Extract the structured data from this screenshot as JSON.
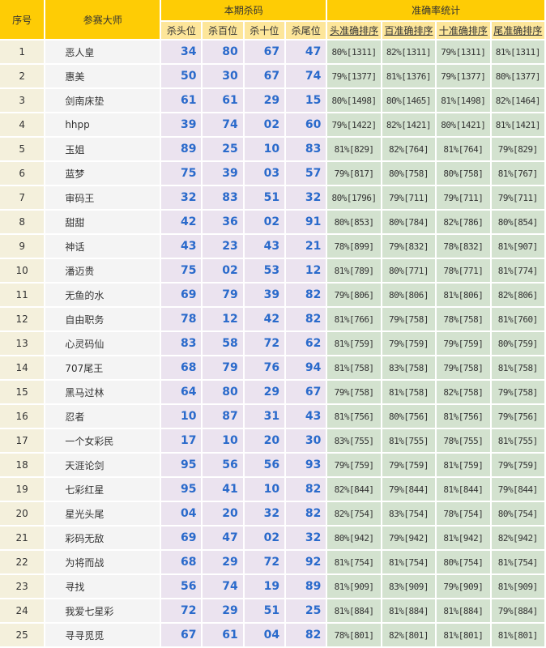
{
  "header": {
    "no": "序号",
    "name": "参赛大师",
    "kill_group": "本期杀码",
    "stat_group": "准确率统计",
    "kill_cols": [
      "杀头位",
      "杀百位",
      "杀十位",
      "杀尾位"
    ],
    "stat_cols": [
      "头准确排序",
      "百准确排序",
      "十准确排序",
      "尾准确排序"
    ]
  },
  "colors": {
    "header": "#fecc05",
    "subheader": "#fde69a",
    "kill_text": "#2a6acb",
    "kill_bg": "#ebe3ef",
    "stat_bg": "#d3e2cf"
  },
  "rows": [
    {
      "no": "1",
      "name": "恶人皇",
      "kill": [
        "34",
        "80",
        "67",
        "47"
      ],
      "stat": [
        "80%[1311]",
        "82%[1311]",
        "79%[1311]",
        "81%[1311]"
      ]
    },
    {
      "no": "2",
      "name": "惠美",
      "kill": [
        "50",
        "30",
        "67",
        "74"
      ],
      "stat": [
        "79%[1377]",
        "81%[1376]",
        "79%[1377]",
        "80%[1377]"
      ]
    },
    {
      "no": "3",
      "name": "剑南床垫",
      "kill": [
        "61",
        "61",
        "29",
        "15"
      ],
      "stat": [
        "80%[1498]",
        "80%[1465]",
        "81%[1498]",
        "82%[1464]"
      ]
    },
    {
      "no": "4",
      "name": "hhpp",
      "kill": [
        "39",
        "74",
        "02",
        "60"
      ],
      "stat": [
        "79%[1422]",
        "82%[1421]",
        "80%[1421]",
        "81%[1421]"
      ]
    },
    {
      "no": "5",
      "name": "玉姐",
      "kill": [
        "89",
        "25",
        "10",
        "83"
      ],
      "stat": [
        "81%[829]",
        "82%[764]",
        "81%[764]",
        "79%[829]"
      ]
    },
    {
      "no": "6",
      "name": "蓝梦",
      "kill": [
        "75",
        "39",
        "03",
        "57"
      ],
      "stat": [
        "79%[817]",
        "80%[758]",
        "80%[758]",
        "81%[767]"
      ]
    },
    {
      "no": "7",
      "name": "审码王",
      "kill": [
        "32",
        "83",
        "51",
        "32"
      ],
      "stat": [
        "80%[1796]",
        "79%[711]",
        "79%[711]",
        "79%[711]"
      ]
    },
    {
      "no": "8",
      "name": "甜甜",
      "kill": [
        "42",
        "36",
        "02",
        "91"
      ],
      "stat": [
        "80%[853]",
        "80%[784]",
        "82%[786]",
        "80%[854]"
      ]
    },
    {
      "no": "9",
      "name": "神话",
      "kill": [
        "43",
        "23",
        "43",
        "21"
      ],
      "stat": [
        "78%[899]",
        "79%[832]",
        "78%[832]",
        "81%[907]"
      ]
    },
    {
      "no": "10",
      "name": "潘迈贵",
      "kill": [
        "75",
        "02",
        "53",
        "12"
      ],
      "stat": [
        "81%[789]",
        "80%[771]",
        "78%[771]",
        "81%[774]"
      ]
    },
    {
      "no": "11",
      "name": "无鱼的水",
      "kill": [
        "69",
        "79",
        "39",
        "82"
      ],
      "stat": [
        "79%[806]",
        "80%[806]",
        "81%[806]",
        "82%[806]"
      ]
    },
    {
      "no": "12",
      "name": "自由职务",
      "kill": [
        "78",
        "12",
        "42",
        "82"
      ],
      "stat": [
        "81%[766]",
        "79%[758]",
        "78%[758]",
        "81%[760]"
      ]
    },
    {
      "no": "13",
      "name": "心灵码仙",
      "kill": [
        "83",
        "58",
        "72",
        "62"
      ],
      "stat": [
        "81%[759]",
        "79%[759]",
        "79%[759]",
        "80%[759]"
      ]
    },
    {
      "no": "14",
      "name": "707尾王",
      "kill": [
        "68",
        "79",
        "76",
        "94"
      ],
      "stat": [
        "81%[758]",
        "83%[758]",
        "79%[758]",
        "81%[758]"
      ]
    },
    {
      "no": "15",
      "name": "黑马过林",
      "kill": [
        "64",
        "80",
        "29",
        "67"
      ],
      "stat": [
        "79%[758]",
        "81%[758]",
        "82%[758]",
        "79%[758]"
      ]
    },
    {
      "no": "16",
      "name": "忍者",
      "kill": [
        "10",
        "87",
        "31",
        "43"
      ],
      "stat": [
        "81%[756]",
        "80%[756]",
        "81%[756]",
        "79%[756]"
      ]
    },
    {
      "no": "17",
      "name": "一个女彩民",
      "kill": [
        "17",
        "10",
        "20",
        "30"
      ],
      "stat": [
        "83%[755]",
        "81%[755]",
        "78%[755]",
        "81%[755]"
      ]
    },
    {
      "no": "18",
      "name": "天涯论剑",
      "kill": [
        "95",
        "56",
        "56",
        "93"
      ],
      "stat": [
        "79%[759]",
        "79%[759]",
        "81%[759]",
        "79%[759]"
      ]
    },
    {
      "no": "19",
      "name": "七彩红星",
      "kill": [
        "95",
        "41",
        "10",
        "82"
      ],
      "stat": [
        "82%[844]",
        "79%[844]",
        "81%[844]",
        "79%[844]"
      ]
    },
    {
      "no": "20",
      "name": "星光头尾",
      "kill": [
        "04",
        "20",
        "32",
        "82"
      ],
      "stat": [
        "82%[754]",
        "83%[754]",
        "78%[754]",
        "80%[754]"
      ]
    },
    {
      "no": "21",
      "name": "彩码无敌",
      "kill": [
        "69",
        "47",
        "02",
        "32"
      ],
      "stat": [
        "80%[942]",
        "79%[942]",
        "81%[942]",
        "82%[942]"
      ]
    },
    {
      "no": "22",
      "name": "为将而战",
      "kill": [
        "68",
        "29",
        "72",
        "92"
      ],
      "stat": [
        "81%[754]",
        "81%[754]",
        "80%[754]",
        "81%[754]"
      ]
    },
    {
      "no": "23",
      "name": "寻找",
      "kill": [
        "56",
        "74",
        "19",
        "89"
      ],
      "stat": [
        "81%[909]",
        "83%[909]",
        "79%[909]",
        "81%[909]"
      ]
    },
    {
      "no": "24",
      "name": "我爱七星彩",
      "kill": [
        "72",
        "29",
        "51",
        "25"
      ],
      "stat": [
        "81%[884]",
        "81%[884]",
        "81%[884]",
        "79%[884]"
      ]
    },
    {
      "no": "25",
      "name": "寻寻觅觅",
      "kill": [
        "67",
        "61",
        "04",
        "82"
      ],
      "stat": [
        "78%[801]",
        "82%[801]",
        "81%[801]",
        "81%[801]"
      ]
    }
  ]
}
